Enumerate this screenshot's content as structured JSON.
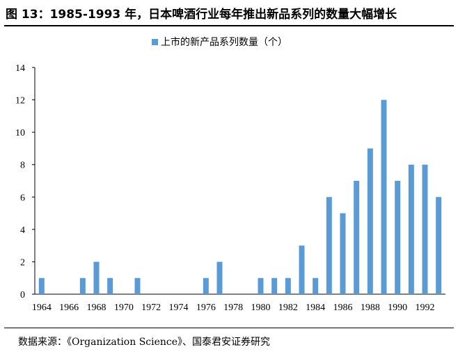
{
  "header": {
    "title": "图 13：1985-1993 年，日本啤酒行业每年推出新品系列的数量大幅增长"
  },
  "footer": {
    "source": "数据来源：《Organization Science》、国泰君安证券研究"
  },
  "chart_data": {
    "type": "bar",
    "series": [
      {
        "name": "上市的新产品系列数量（个）",
        "color": "#5b9bd5",
        "x": [
          1964,
          1965,
          1966,
          1967,
          1968,
          1969,
          1970,
          1971,
          1972,
          1973,
          1974,
          1975,
          1976,
          1977,
          1978,
          1979,
          1980,
          1981,
          1982,
          1983,
          1984,
          1985,
          1986,
          1987,
          1988,
          1989,
          1990,
          1991,
          1992,
          1993
        ],
        "values": [
          1,
          0,
          0,
          1,
          2,
          1,
          0,
          1,
          0,
          0,
          0,
          0,
          1,
          2,
          0,
          0,
          1,
          1,
          1,
          3,
          1,
          6,
          5,
          7,
          9,
          12,
          7,
          8,
          8,
          6
        ]
      }
    ],
    "x_tick_labels": [
      "1964",
      "1966",
      "1968",
      "1970",
      "1972",
      "1974",
      "1976",
      "1978",
      "1980",
      "1982",
      "1984",
      "1986",
      "1988",
      "1990",
      "1992"
    ],
    "y_ticks": [
      0,
      2,
      4,
      6,
      8,
      10,
      12,
      14
    ],
    "ylim": [
      0,
      14
    ],
    "legend_position": "top-center",
    "grid": false
  }
}
